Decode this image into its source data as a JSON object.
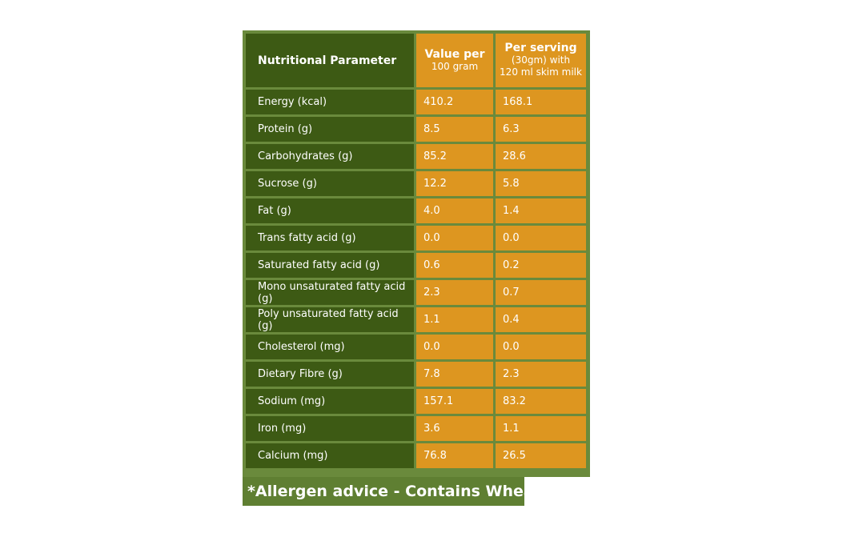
{
  "table": {
    "headers": {
      "parameter": "Nutritional Parameter",
      "per100": {
        "line1": "Value per",
        "line2": "100 gram"
      },
      "perServing": {
        "line1": "Per serving",
        "line2": "(30gm) with",
        "line3": "120 ml skim milk"
      }
    },
    "rows": [
      {
        "parameter": "Energy (kcal)",
        "per100": "410.2",
        "perServing": "168.1"
      },
      {
        "parameter": "Protein (g)",
        "per100": "8.5",
        "perServing": "6.3"
      },
      {
        "parameter": "Carbohydrates (g)",
        "per100": "85.2",
        "perServing": "28.6"
      },
      {
        "parameter": "Sucrose (g)",
        "per100": "12.2",
        "perServing": "5.8"
      },
      {
        "parameter": "Fat (g)",
        "per100": "4.0",
        "perServing": "1.4"
      },
      {
        "parameter": "Trans fatty acid (g)",
        "per100": "0.0",
        "perServing": "0.0"
      },
      {
        "parameter": "Saturated fatty acid (g)",
        "per100": "0.6",
        "perServing": "0.2"
      },
      {
        "parameter": "Mono unsaturated fatty acid (g)",
        "per100": "2.3",
        "perServing": "0.7"
      },
      {
        "parameter": "Poly unsaturated fatty acid (g)",
        "per100": "1.1",
        "perServing": "0.4"
      },
      {
        "parameter": "Cholesterol (mg)",
        "per100": "0.0",
        "perServing": "0.0"
      },
      {
        "parameter": "Dietary Fibre (g)",
        "per100": "7.8",
        "perServing": "2.3"
      },
      {
        "parameter": "Sodium (mg)",
        "per100": "157.1",
        "perServing": "83.2"
      },
      {
        "parameter": "Iron (mg)",
        "per100": "3.6",
        "perServing": "1.1"
      },
      {
        "parameter": "Calcium (mg)",
        "per100": "76.8",
        "perServing": "26.5"
      }
    ]
  },
  "allergen": "*Allergen advice - Contains Wheat",
  "colors": {
    "frame": "#6a8a3c",
    "parameterCell": "#3d5a14",
    "valueCell": "#dd9620",
    "allergenBar": "#5f7f32"
  }
}
